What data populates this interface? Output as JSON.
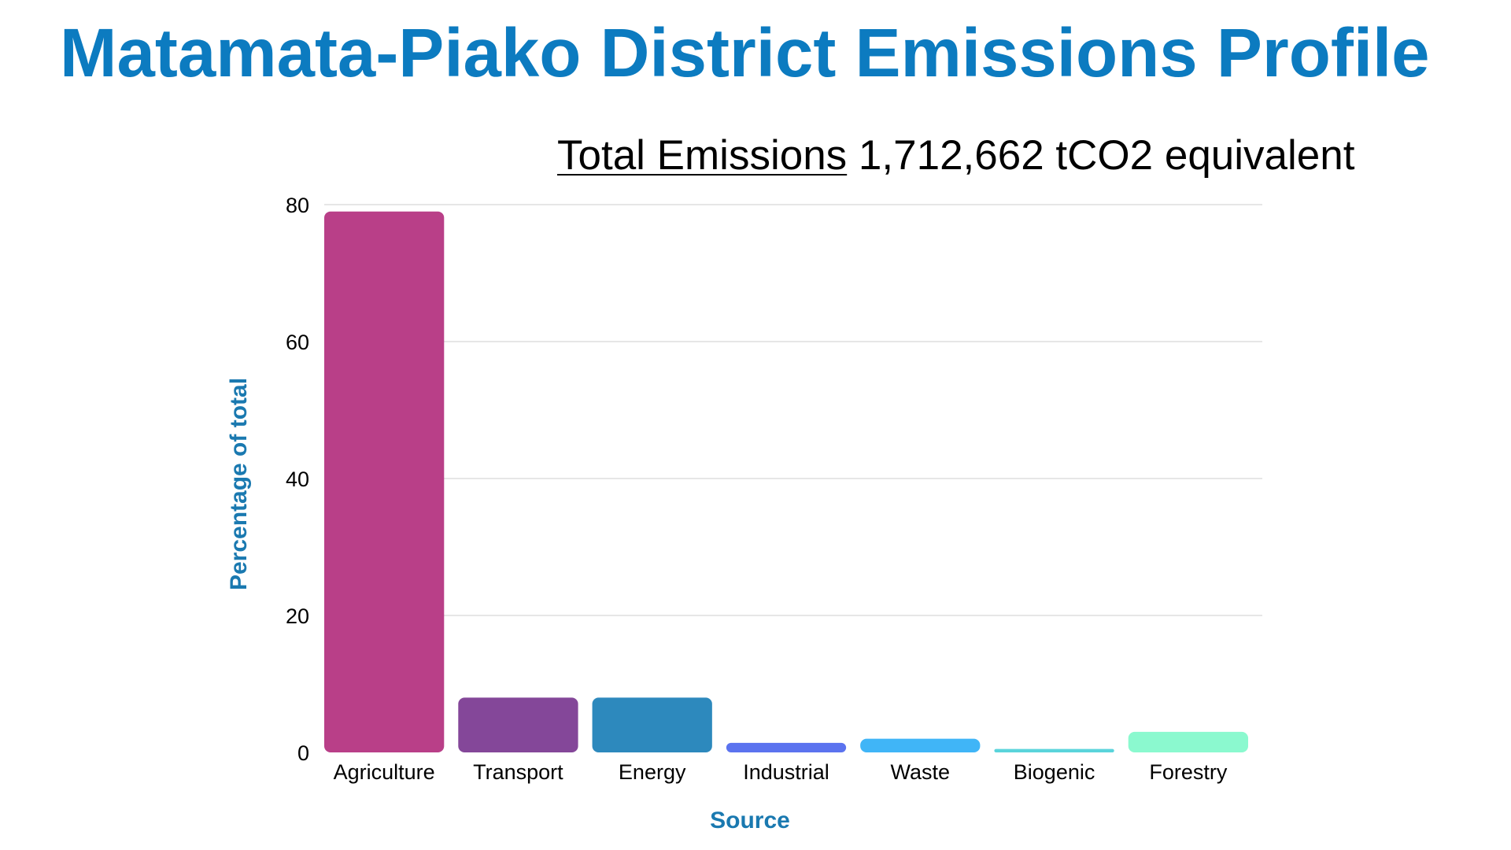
{
  "header": {
    "title": "Matamata-Piako District Emissions Profile",
    "subtitle_label": "Total Emissions",
    "subtitle_value": " 1,712,662 tCO2 equivalent"
  },
  "colors": {
    "title": "#0C7BC0",
    "axis_title": "#1A79B0",
    "gridline": "#DDDDDD",
    "tick_text": "#000000"
  },
  "chart_data": {
    "type": "bar",
    "categories": [
      "Agriculture",
      "Transport",
      "Energy",
      "Industrial",
      "Waste",
      "Biogenic",
      "Forestry"
    ],
    "values": [
      79,
      8,
      8,
      1.4,
      2,
      0.5,
      3
    ],
    "bar_colors": [
      "#B93F88",
      "#844799",
      "#2D89BD",
      "#5B73EF",
      "#40B5F7",
      "#5AD4DB",
      "#8BF9CF"
    ],
    "xlabel": "Source",
    "ylabel": "Percentage of total",
    "ylim": [
      0,
      80
    ],
    "yticks": [
      0,
      20,
      40,
      60,
      80
    ],
    "grid": true,
    "legend": "none"
  }
}
